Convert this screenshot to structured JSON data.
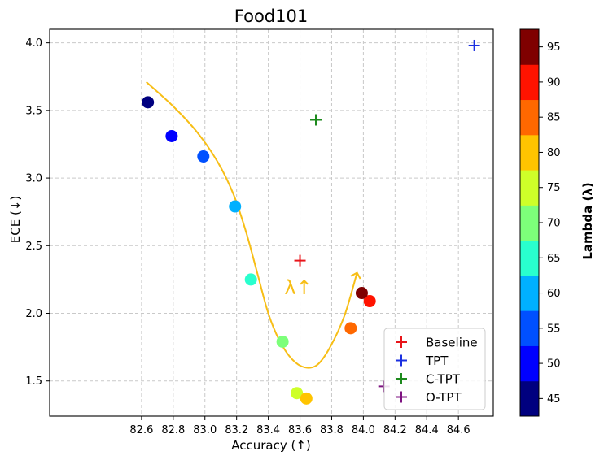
{
  "chart_data": {
    "type": "scatter",
    "title": "Food101",
    "xlabel": "Accuracy (↑)",
    "ylabel": "ECE (↓)",
    "xlim": [
      82.02,
      84.82
    ],
    "ylim": [
      1.24,
      4.1
    ],
    "xticks": [
      "82.6",
      "82.8",
      "83.0",
      "83.2",
      "83.4",
      "83.6",
      "83.8",
      "84.0",
      "84.2",
      "84.4",
      "84.6"
    ],
    "yticks": [
      "1.5",
      "2.0",
      "2.5",
      "3.0",
      "3.5",
      "4.0"
    ],
    "grid": true,
    "lambda_series": [
      {
        "lambda": 45,
        "x": 82.64,
        "y": 3.56,
        "color": "#00007f"
      },
      {
        "lambda": 50,
        "x": 82.79,
        "y": 3.31,
        "color": "#0000ff"
      },
      {
        "lambda": 55,
        "x": 82.99,
        "y": 3.16,
        "color": "#0050ff"
      },
      {
        "lambda": 60,
        "x": 83.19,
        "y": 2.79,
        "color": "#00b0ff"
      },
      {
        "lambda": 65,
        "x": 83.29,
        "y": 2.25,
        "color": "#29ffce"
      },
      {
        "lambda": 70,
        "x": 83.49,
        "y": 1.79,
        "color": "#7dff7a"
      },
      {
        "lambda": 75,
        "x": 83.58,
        "y": 1.41,
        "color": "#ceff29"
      },
      {
        "lambda": 80,
        "x": 83.64,
        "y": 1.37,
        "color": "#ffc400"
      },
      {
        "lambda": 85,
        "x": 83.92,
        "y": 1.89,
        "color": "#ff6800"
      },
      {
        "lambda": 90,
        "x": 84.04,
        "y": 2.09,
        "color": "#ff1300"
      },
      {
        "lambda": 95,
        "x": 83.99,
        "y": 2.15,
        "color": "#7f0000"
      }
    ],
    "methods": [
      {
        "name": "Baseline",
        "x": 83.6,
        "y": 2.39,
        "color": "#e8151a"
      },
      {
        "name": "TPT",
        "x": 84.7,
        "y": 3.98,
        "color": "#1a2fe0"
      },
      {
        "name": "C-TPT",
        "x": 83.7,
        "y": 3.43,
        "color": "#1d8a1d"
      },
      {
        "name": "O-TPT",
        "x": 84.13,
        "y": 1.46,
        "color": "#7d1280"
      }
    ],
    "trend_curve": [
      [
        82.63,
        3.71
      ],
      [
        82.8,
        3.53
      ],
      [
        82.95,
        3.34
      ],
      [
        83.08,
        3.12
      ],
      [
        83.18,
        2.88
      ],
      [
        83.26,
        2.6
      ],
      [
        83.33,
        2.3
      ],
      [
        83.4,
        2.0
      ],
      [
        83.47,
        1.8
      ],
      [
        83.55,
        1.66
      ],
      [
        83.63,
        1.6
      ],
      [
        83.71,
        1.62
      ],
      [
        83.79,
        1.75
      ],
      [
        83.88,
        1.98
      ],
      [
        83.96,
        2.3
      ]
    ],
    "trend_color": "#f7be16",
    "annotation": "λ↑",
    "annotation_pos": [
      83.59,
      2.14
    ],
    "colorbar": {
      "label": "Lambda (λ)",
      "min": 42.5,
      "max": 97.5,
      "ticks": [
        "45",
        "50",
        "55",
        "60",
        "65",
        "70",
        "75",
        "80",
        "85",
        "90",
        "95"
      ]
    },
    "legend": {
      "position": "lower-right"
    }
  }
}
